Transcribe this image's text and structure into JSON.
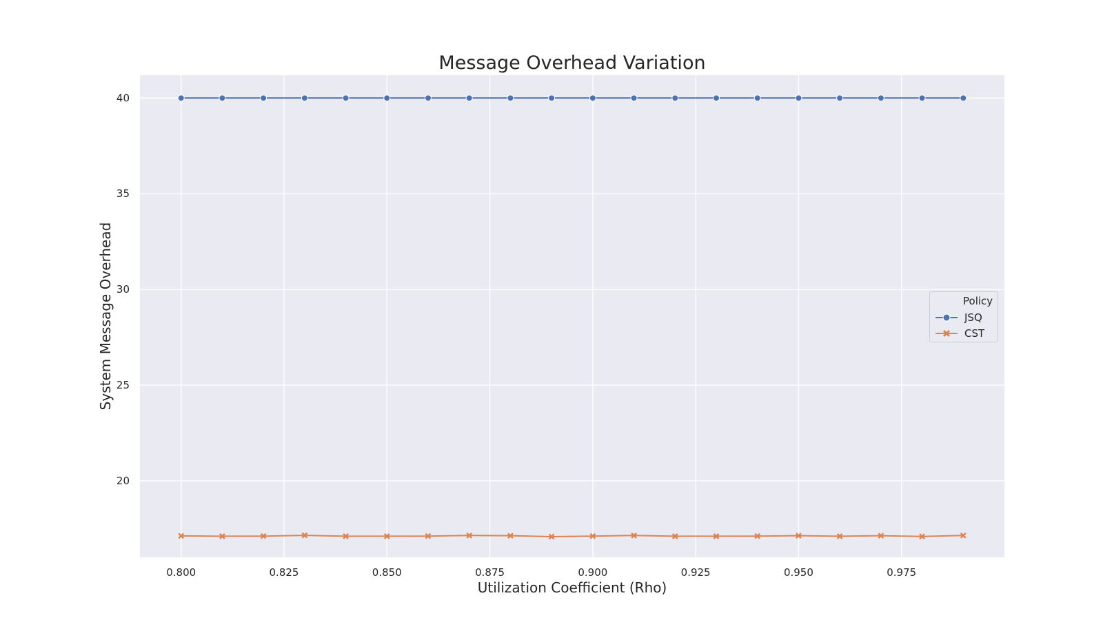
{
  "chart_data": {
    "type": "line",
    "title": "Message Overhead Variation",
    "xlabel": "Utilization Coefficient (Rho)",
    "ylabel": "System Message Overhead",
    "x": [
      0.8,
      0.81,
      0.82,
      0.83,
      0.84,
      0.85,
      0.86,
      0.87,
      0.88,
      0.89,
      0.9,
      0.91,
      0.92,
      0.93,
      0.94,
      0.95,
      0.96,
      0.97,
      0.98,
      0.99
    ],
    "xlim": [
      0.79,
      1.0
    ],
    "ylim": [
      16.0,
      41.2
    ],
    "xticks": [
      "0.800",
      "0.825",
      "0.850",
      "0.875",
      "0.900",
      "0.925",
      "0.950",
      "0.975"
    ],
    "xtick_values": [
      0.8,
      0.825,
      0.85,
      0.875,
      0.9,
      0.925,
      0.95,
      0.975
    ],
    "yticks": [
      "20",
      "25",
      "30",
      "35",
      "40"
    ],
    "ytick_values": [
      20,
      25,
      30,
      35,
      40
    ],
    "grid": true,
    "background": "#eaeaf2",
    "legend": {
      "title": "Policy",
      "placement": "right"
    },
    "series": [
      {
        "name": "JSQ",
        "color": "#4c72b0",
        "marker": "circle",
        "values": [
          40,
          40,
          40,
          40,
          40,
          40,
          40,
          40,
          40,
          40,
          40,
          40,
          40,
          40,
          40,
          40,
          40,
          40,
          40,
          40
        ]
      },
      {
        "name": "CST",
        "color": "#dd8452",
        "marker": "x",
        "values": [
          17.12,
          17.1,
          17.11,
          17.15,
          17.1,
          17.1,
          17.11,
          17.14,
          17.13,
          17.08,
          17.11,
          17.14,
          17.1,
          17.1,
          17.11,
          17.13,
          17.1,
          17.13,
          17.09,
          17.14
        ]
      }
    ]
  }
}
